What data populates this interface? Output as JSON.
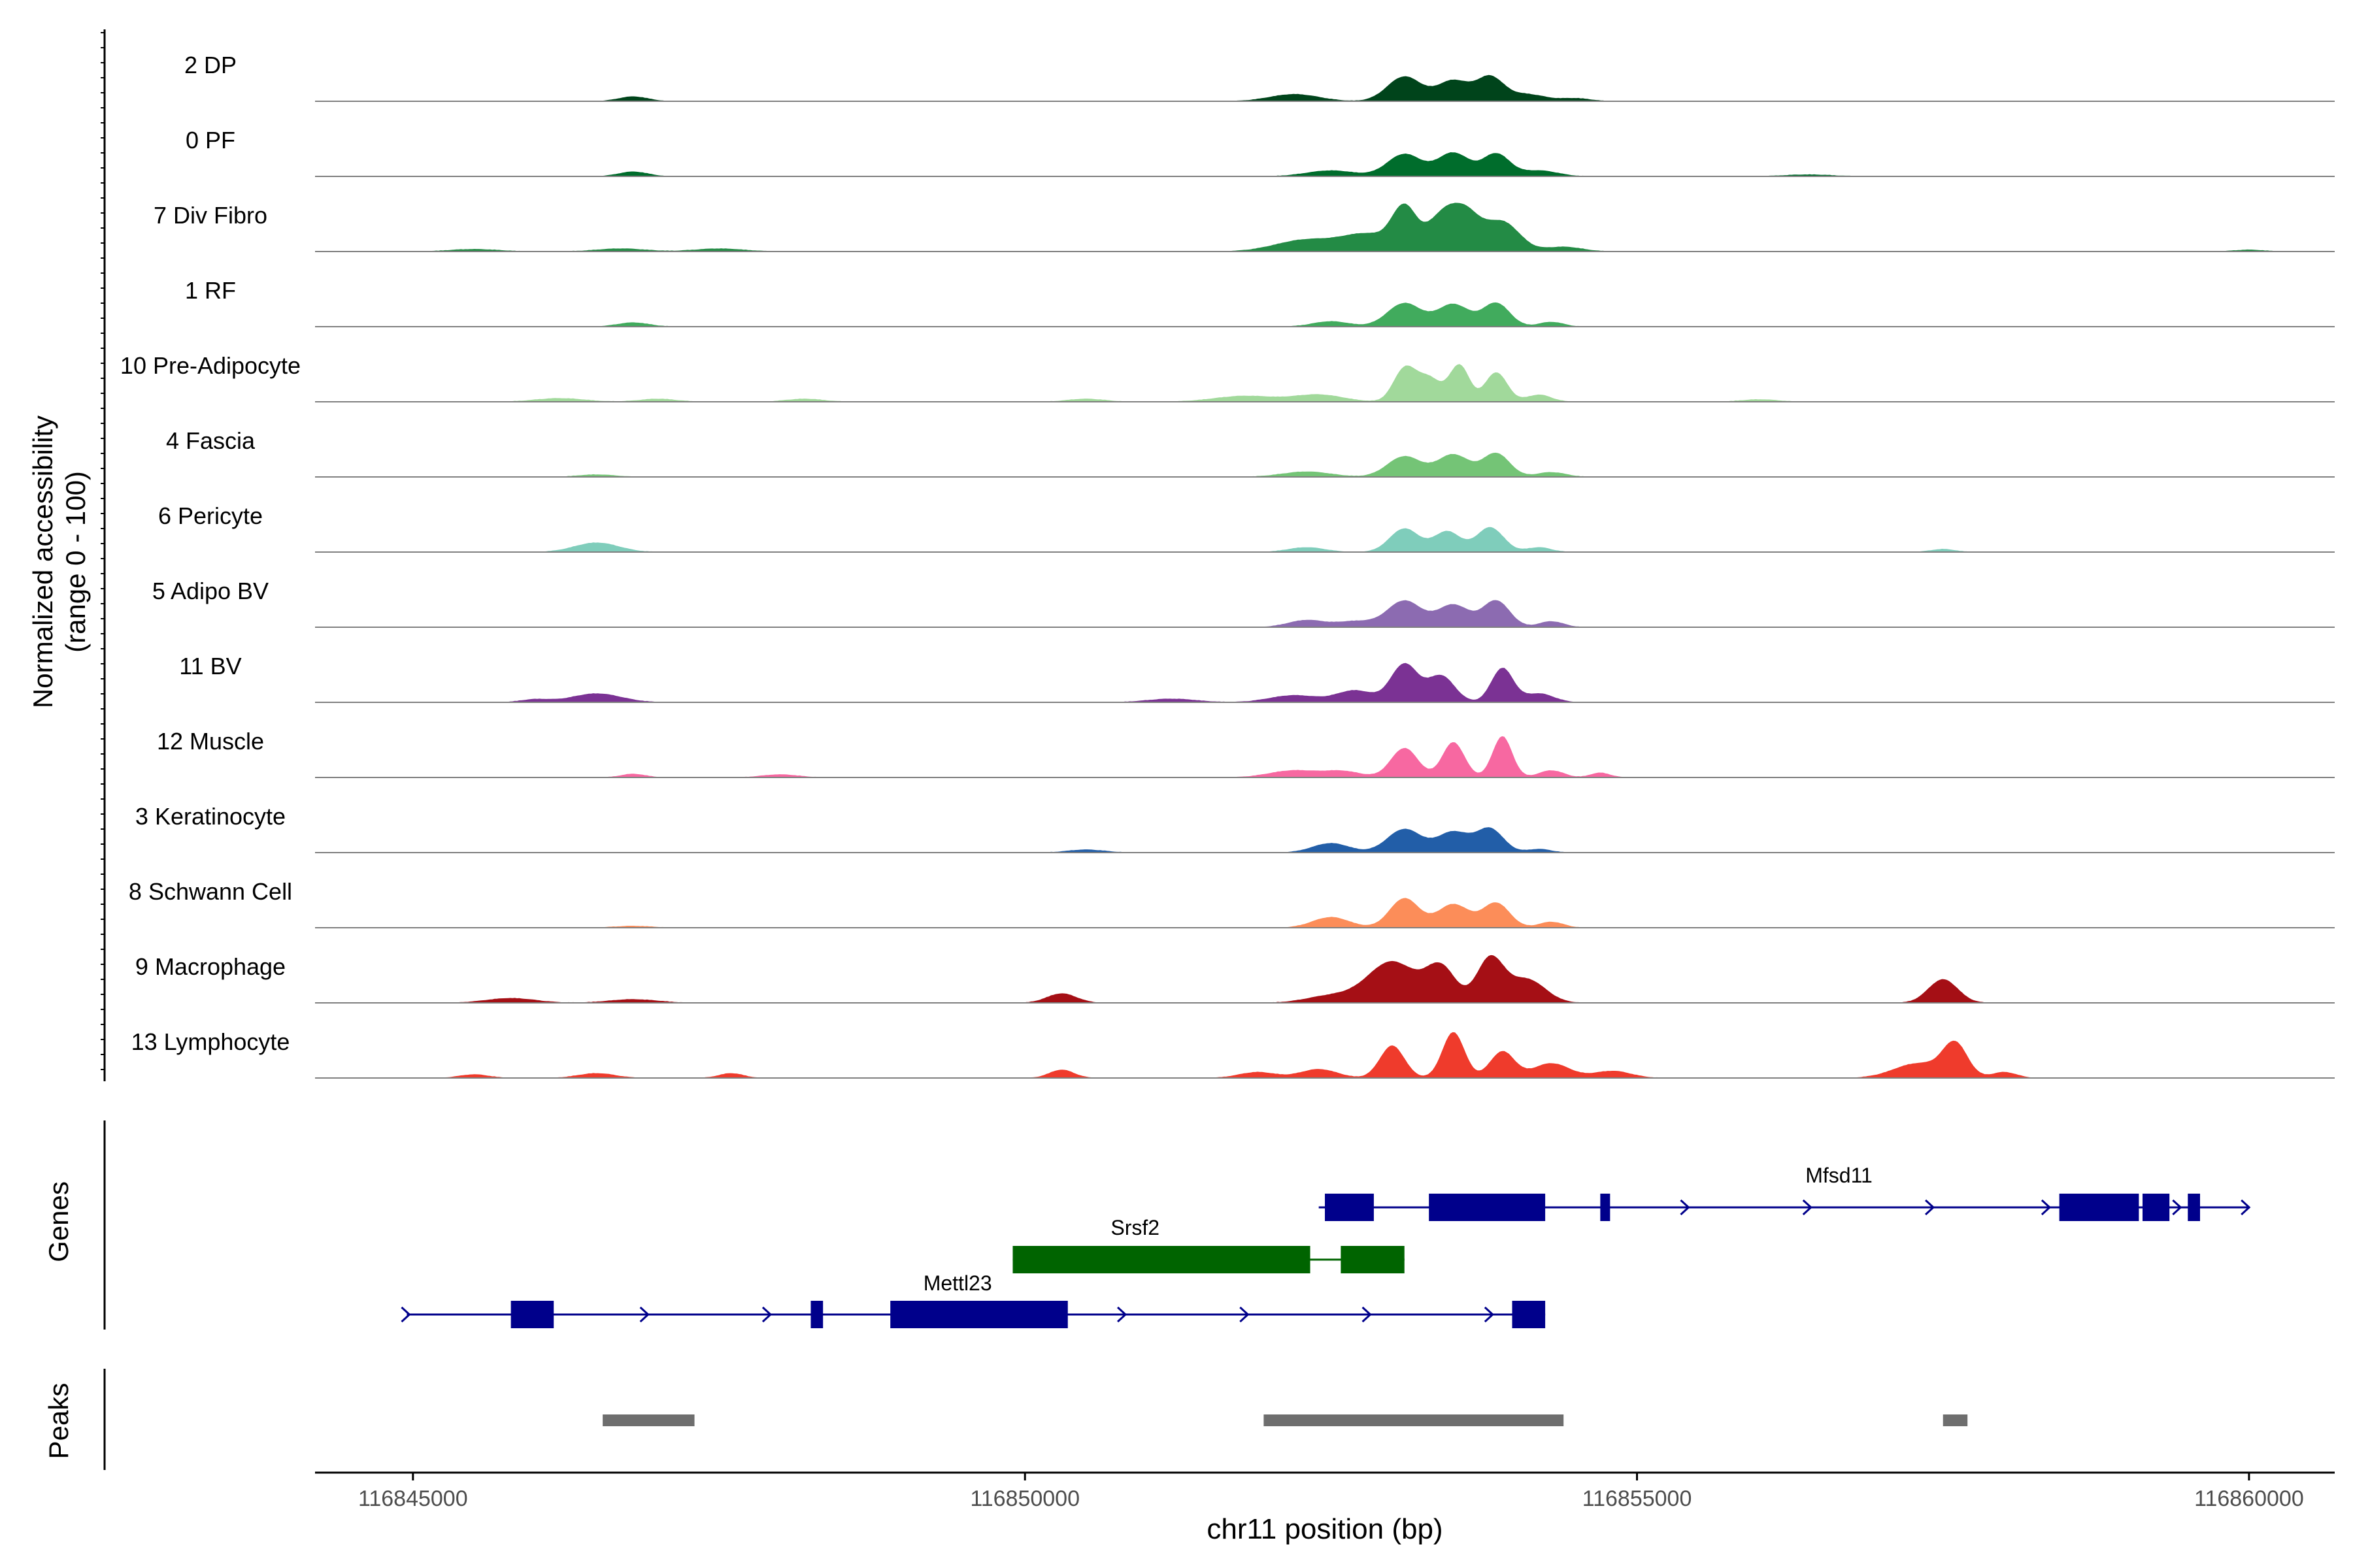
{
  "chart_data": {
    "type": "area",
    "title": "",
    "xlabel": "chr11 position (bp)",
    "ylabel": "Normalized accessibility",
    "ylabel_sub": "(range 0 - 100)",
    "xlim": [
      116844200,
      116860700
    ],
    "x_ticks": [
      116845000,
      116850000,
      116855000,
      116860000
    ],
    "x_tick_labels": [
      "116845000",
      "116850000",
      "116855000",
      "116860000"
    ],
    "ylim": [
      0,
      100
    ],
    "grid": false,
    "tracks": [
      {
        "name": "2 DP",
        "color": "#00441b",
        "peaks": [
          [
            116846800,
            8,
            120
          ],
          [
            116852200,
            12,
            200
          ],
          [
            116853100,
            42,
            140
          ],
          [
            116853500,
            35,
            130
          ],
          [
            116853800,
            40,
            110
          ],
          [
            116854100,
            12,
            150
          ],
          [
            116854500,
            5,
            120
          ]
        ]
      },
      {
        "name": "0 PF",
        "color": "#006d2c",
        "peaks": [
          [
            116846800,
            8,
            120
          ],
          [
            116852500,
            10,
            200
          ],
          [
            116853100,
            38,
            140
          ],
          [
            116853500,
            40,
            130
          ],
          [
            116853850,
            38,
            110
          ],
          [
            116854200,
            10,
            150
          ],
          [
            116856400,
            3,
            200
          ]
        ]
      },
      {
        "name": "7 Div Fibro",
        "color": "#238b45",
        "peaks": [
          [
            116845500,
            4,
            200
          ],
          [
            116846700,
            5,
            200
          ],
          [
            116847500,
            5,
            200
          ],
          [
            116852300,
            20,
            250
          ],
          [
            116852800,
            28,
            200
          ],
          [
            116853100,
            70,
            100
          ],
          [
            116853400,
            55,
            120
          ],
          [
            116853600,
            60,
            120
          ],
          [
            116853900,
            50,
            140
          ],
          [
            116854400,
            8,
            150
          ],
          [
            116860000,
            3,
            120
          ]
        ]
      },
      {
        "name": "1 RF",
        "color": "#41ab5d",
        "peaks": [
          [
            116846800,
            7,
            130
          ],
          [
            116852500,
            9,
            150
          ],
          [
            116853100,
            40,
            140
          ],
          [
            116853500,
            38,
            130
          ],
          [
            116853850,
            40,
            110
          ],
          [
            116854300,
            8,
            100
          ]
        ]
      },
      {
        "name": "10 Pre-Adipocyte",
        "color": "#a1d99b",
        "peaks": [
          [
            116846200,
            6,
            200
          ],
          [
            116847000,
            5,
            150
          ],
          [
            116848200,
            5,
            150
          ],
          [
            116850500,
            5,
            150
          ],
          [
            116851800,
            10,
            250
          ],
          [
            116852400,
            12,
            200
          ],
          [
            116853100,
            55,
            90
          ],
          [
            116853300,
            40,
            100
          ],
          [
            116853550,
            62,
            80
          ],
          [
            116853850,
            50,
            90
          ],
          [
            116854200,
            12,
            100
          ],
          [
            116856000,
            4,
            150
          ]
        ]
      },
      {
        "name": "4 Fascia",
        "color": "#74c476",
        "peaks": [
          [
            116846500,
            4,
            150
          ],
          [
            116852300,
            9,
            200
          ],
          [
            116853100,
            35,
            140
          ],
          [
            116853500,
            38,
            130
          ],
          [
            116853850,
            40,
            110
          ],
          [
            116854300,
            8,
            120
          ]
        ]
      },
      {
        "name": "6 Pericyte",
        "color": "#7fcdbb",
        "peaks": [
          [
            116846500,
            16,
            180
          ],
          [
            116852300,
            8,
            150
          ],
          [
            116853100,
            40,
            120
          ],
          [
            116853450,
            35,
            110
          ],
          [
            116853800,
            42,
            110
          ],
          [
            116854200,
            8,
            100
          ],
          [
            116857500,
            5,
            100
          ]
        ]
      },
      {
        "name": "5 Adipo BV",
        "color": "#8c6bb1",
        "peaks": [
          [
            116852300,
            12,
            150
          ],
          [
            116852700,
            10,
            150
          ],
          [
            116853100,
            45,
            140
          ],
          [
            116853500,
            38,
            130
          ],
          [
            116853850,
            45,
            110
          ],
          [
            116854300,
            10,
            100
          ]
        ]
      },
      {
        "name": "11 BV",
        "color": "#7b3294",
        "peaks": [
          [
            116846000,
            5,
            120
          ],
          [
            116846500,
            15,
            200
          ],
          [
            116851200,
            6,
            200
          ],
          [
            116852200,
            12,
            200
          ],
          [
            116852700,
            20,
            150
          ],
          [
            116853100,
            65,
            110
          ],
          [
            116853400,
            45,
            110
          ],
          [
            116853900,
            58,
            90
          ],
          [
            116854200,
            15,
            120
          ]
        ]
      },
      {
        "name": "12 Muscle",
        "color": "#f768a1",
        "peaks": [
          [
            116846800,
            6,
            100
          ],
          [
            116848000,
            5,
            150
          ],
          [
            116852200,
            12,
            200
          ],
          [
            116852600,
            10,
            150
          ],
          [
            116853100,
            50,
            110
          ],
          [
            116853500,
            60,
            90
          ],
          [
            116853900,
            70,
            80
          ],
          [
            116854300,
            12,
            100
          ],
          [
            116854700,
            8,
            80
          ]
        ]
      },
      {
        "name": "3 Keratinocyte",
        "color": "#225ea8",
        "peaks": [
          [
            116850500,
            5,
            150
          ],
          [
            116852500,
            16,
            150
          ],
          [
            116853100,
            40,
            140
          ],
          [
            116853500,
            35,
            130
          ],
          [
            116853800,
            40,
            110
          ],
          [
            116854200,
            6,
            100
          ]
        ]
      },
      {
        "name": "8 Schwann Cell",
        "color": "#fc8d59",
        "peaks": [
          [
            116846800,
            3,
            150
          ],
          [
            116852500,
            18,
            150
          ],
          [
            116853100,
            50,
            120
          ],
          [
            116853500,
            40,
            130
          ],
          [
            116853850,
            42,
            110
          ],
          [
            116854300,
            10,
            100
          ]
        ]
      },
      {
        "name": "9 Macrophage",
        "color": "#a50f15",
        "peaks": [
          [
            116845800,
            8,
            200
          ],
          [
            116846800,
            6,
            200
          ],
          [
            116850300,
            16,
            120
          ],
          [
            116852500,
            12,
            200
          ],
          [
            116853000,
            70,
            200
          ],
          [
            116853400,
            58,
            120
          ],
          [
            116853800,
            75,
            110
          ],
          [
            116854100,
            40,
            150
          ],
          [
            116857500,
            40,
            120
          ]
        ]
      },
      {
        "name": "13 Lymphocyte",
        "color": "#ef3b2c",
        "peaks": [
          [
            116845500,
            6,
            120
          ],
          [
            116846500,
            8,
            150
          ],
          [
            116847600,
            8,
            100
          ],
          [
            116850300,
            14,
            100
          ],
          [
            116851900,
            10,
            150
          ],
          [
            116852400,
            15,
            150
          ],
          [
            116853000,
            55,
            100
          ],
          [
            116853500,
            78,
            90
          ],
          [
            116853900,
            45,
            100
          ],
          [
            116854300,
            25,
            150
          ],
          [
            116854800,
            12,
            150
          ],
          [
            116857300,
            25,
            200
          ],
          [
            116857600,
            55,
            100
          ],
          [
            116858000,
            10,
            100
          ]
        ]
      }
    ],
    "genes_track_label": "Genes",
    "genes": [
      {
        "name": "Mfsd11",
        "color": "#00008b",
        "strand": "+",
        "start": 116852400,
        "end": 116860000,
        "exons": [
          [
            116852450,
            116852850
          ],
          [
            116853300,
            116854250
          ],
          [
            116854700,
            116854780
          ],
          [
            116858450,
            116859100
          ],
          [
            116859130,
            116859350
          ],
          [
            116859500,
            116859600
          ]
        ],
        "arrows": [
          116854150,
          116855400,
          116856400,
          116857400,
          116858350,
          116859420,
          116859980
        ]
      },
      {
        "name": "Srsf2",
        "color": "#006400",
        "strand": "-",
        "start": 116849900,
        "end": 116853100,
        "exons": [
          [
            116849900,
            116852330
          ],
          [
            116852580,
            116853100
          ]
        ],
        "arrows": []
      },
      {
        "name": "Mettl23",
        "color": "#00008b",
        "strand": "+",
        "start": 116844950,
        "end": 116854250,
        "exons": [
          [
            116845800,
            116846150
          ],
          [
            116848250,
            116848350
          ],
          [
            116848900,
            116850350
          ],
          [
            116853980,
            116854250
          ]
        ],
        "arrows": [
          116844950,
          116846900,
          116847900,
          116849200,
          116850800,
          116851800,
          116852800,
          116853800
        ]
      }
    ],
    "peaks_track_label": "Peaks",
    "peak_regions": [
      [
        116846550,
        116847300
      ],
      [
        116851950,
        116854400
      ],
      [
        116857500,
        116857700
      ]
    ]
  }
}
